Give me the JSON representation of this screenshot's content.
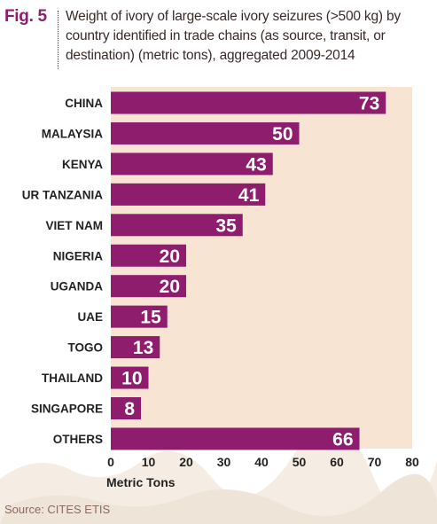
{
  "figure": {
    "label": "Fig. 5",
    "title": "Weight of ivory of large-scale ivory seizures (>500 kg) by country identified in trade chains (as source, transit, or destination) (metric tons), aggregated 2009-2014",
    "source": "Source: CITES ETIS"
  },
  "colors": {
    "bar": "#8e1d6e",
    "plot_background": "#f7e4d2",
    "label_accent": "#8e1d6e",
    "texture": "#efe4d8"
  },
  "chart_data": {
    "type": "bar",
    "orientation": "horizontal",
    "categories": [
      "CHINA",
      "MALAYSIA",
      "KENYA",
      "UR TANZANIA",
      "VIET NAM",
      "NIGERIA",
      "UGANDA",
      "UAE",
      "TOGO",
      "THAILAND",
      "SINGAPORE",
      "OTHERS"
    ],
    "values": [
      73,
      50,
      43,
      41,
      35,
      20,
      20,
      15,
      13,
      10,
      8,
      66
    ],
    "xlabel": "Metric Tons",
    "ylabel": "",
    "xlim": [
      0,
      80
    ],
    "xticks": [
      0,
      10,
      20,
      30,
      40,
      50,
      60,
      70,
      80
    ],
    "grid": false,
    "data_labels": true
  }
}
